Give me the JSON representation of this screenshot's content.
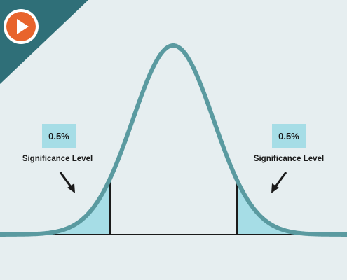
{
  "annotations": [
    {
      "value_label": "0.5%",
      "text": "Significance Level"
    },
    {
      "value_label": "0.5%",
      "text": "Significance Level"
    }
  ]
}
